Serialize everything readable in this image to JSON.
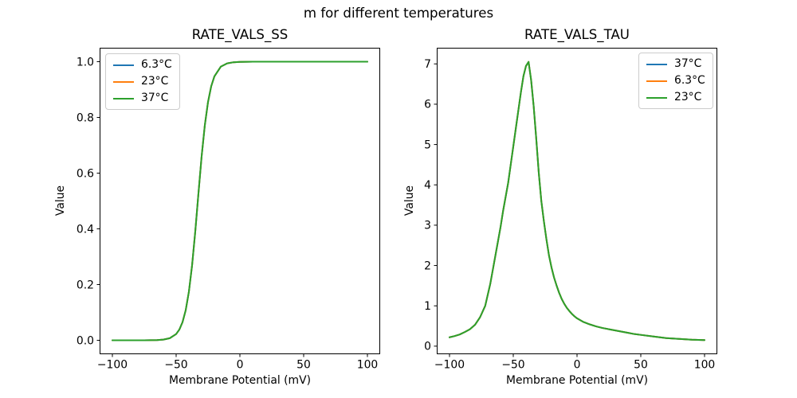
{
  "figure": {
    "suptitle": "m for different temperatures",
    "background_color": "#ffffff",
    "text_color": "#000000",
    "axis_color": "#000000",
    "legend_border_color": "#cccccc"
  },
  "chart_data": [
    {
      "type": "line",
      "title": "RATE_VALS_SS",
      "xlabel": "Membrane Potential (mV)",
      "ylabel": "Value",
      "xlim": [
        -110,
        110
      ],
      "ylim": [
        -0.05,
        1.05
      ],
      "xticks": [
        -100,
        -50,
        0,
        50,
        100
      ],
      "xtick_labels": [
        "−100",
        "−50",
        "0",
        "50",
        "100"
      ],
      "yticks": [
        0.0,
        0.2,
        0.4,
        0.6,
        0.8,
        1.0
      ],
      "ytick_labels": [
        "0.0",
        "0.2",
        "0.4",
        "0.6",
        "0.8",
        "1.0"
      ],
      "grid": false,
      "legend": {
        "loc": "upper left",
        "entries": [
          {
            "label": "6.3°C",
            "color": "#1f77b4"
          },
          {
            "label": "23°C",
            "color": "#ff7f0e"
          },
          {
            "label": "37°C",
            "color": "#2ca02c"
          }
        ]
      },
      "series": [
        {
          "name": "6.3°C",
          "id": "ss-6-3c",
          "color": "#1f77b4"
        },
        {
          "name": "23°C",
          "id": "ss-23c",
          "color": "#ff7f0e"
        },
        {
          "name": "37°C",
          "id": "ss-37c",
          "color": "#2ca02c"
        }
      ],
      "series_note": "All three temperature curves overlap exactly; only the last-drawn green curve is visible.",
      "x": [
        -100,
        -95,
        -90,
        -85,
        -80,
        -75,
        -70,
        -65,
        -60,
        -55,
        -50,
        -47.5,
        -45,
        -42.5,
        -40,
        -37.5,
        -35,
        -32.5,
        -30,
        -27.5,
        -25,
        -22.5,
        -20,
        -15,
        -10,
        -5,
        0,
        5,
        10,
        15,
        20,
        25,
        30,
        35,
        40,
        45,
        50,
        55,
        60,
        65,
        70,
        75,
        80,
        85,
        90,
        95,
        100
      ],
      "values": [
        0.0,
        0.0,
        0.0,
        0.0,
        0.0001,
        0.0001,
        0.0003,
        0.0008,
        0.0025,
        0.0075,
        0.0224,
        0.0383,
        0.065,
        0.1079,
        0.1743,
        0.2689,
        0.3906,
        0.5276,
        0.6608,
        0.7721,
        0.8553,
        0.9118,
        0.9474,
        0.982,
        0.994,
        0.998,
        0.9993,
        0.9998,
        0.9999,
        1.0,
        1.0,
        1.0,
        1.0,
        1.0,
        1.0,
        1.0,
        1.0,
        1.0,
        1.0,
        1.0,
        1.0,
        1.0,
        1.0,
        1.0,
        1.0,
        1.0,
        1.0
      ]
    },
    {
      "type": "line",
      "title": "RATE_VALS_TAU",
      "xlabel": "Membrane Potential (mV)",
      "ylabel": "Value",
      "xlim": [
        -110,
        110
      ],
      "ylim": [
        -0.2,
        7.4
      ],
      "xticks": [
        -100,
        -50,
        0,
        50,
        100
      ],
      "xtick_labels": [
        "−100",
        "−50",
        "0",
        "50",
        "100"
      ],
      "yticks": [
        0,
        1,
        2,
        3,
        4,
        5,
        6,
        7
      ],
      "ytick_labels": [
        "0",
        "1",
        "2",
        "3",
        "4",
        "5",
        "6",
        "7"
      ],
      "grid": false,
      "legend": {
        "loc": "upper right",
        "entries": [
          {
            "label": "37°C",
            "color": "#1f77b4"
          },
          {
            "label": "6.3°C",
            "color": "#ff7f0e"
          },
          {
            "label": "23°C",
            "color": "#2ca02c"
          }
        ]
      },
      "series": [
        {
          "name": "37°C",
          "id": "tau-37c",
          "color": "#1f77b4"
        },
        {
          "name": "6.3°C",
          "id": "tau-6-3c",
          "color": "#ff7f0e"
        },
        {
          "name": "23°C",
          "id": "tau-23c",
          "color": "#2ca02c"
        }
      ],
      "series_note": "All three temperature curves overlap exactly; only the last-drawn green curve is visible. Peak ≈ 7.05 at ≈ −38 mV.",
      "x": [
        -100,
        -96,
        -92,
        -88,
        -84,
        -80,
        -76,
        -72,
        -68,
        -66,
        -64,
        -62,
        -60,
        -58,
        -56,
        -54,
        -52,
        -50,
        -48,
        -46,
        -44,
        -42,
        -40,
        -38,
        -36,
        -34,
        -32,
        -30,
        -28,
        -26,
        -24,
        -22,
        -20,
        -18,
        -16,
        -14,
        -12,
        -10,
        -8,
        -6,
        -4,
        -2,
        0,
        5,
        10,
        15,
        20,
        25,
        30,
        35,
        40,
        45,
        50,
        60,
        70,
        80,
        90,
        100
      ],
      "values": [
        0.22,
        0.25,
        0.29,
        0.35,
        0.42,
        0.53,
        0.72,
        1.0,
        1.55,
        1.9,
        2.25,
        2.6,
        2.95,
        3.35,
        3.7,
        4.05,
        4.5,
        4.95,
        5.4,
        5.85,
        6.3,
        6.7,
        6.95,
        7.05,
        6.6,
        5.95,
        5.15,
        4.3,
        3.6,
        3.1,
        2.65,
        2.25,
        1.95,
        1.7,
        1.5,
        1.32,
        1.17,
        1.05,
        0.95,
        0.87,
        0.8,
        0.74,
        0.69,
        0.6,
        0.54,
        0.49,
        0.45,
        0.42,
        0.39,
        0.36,
        0.33,
        0.3,
        0.28,
        0.24,
        0.2,
        0.18,
        0.16,
        0.15
      ]
    }
  ]
}
